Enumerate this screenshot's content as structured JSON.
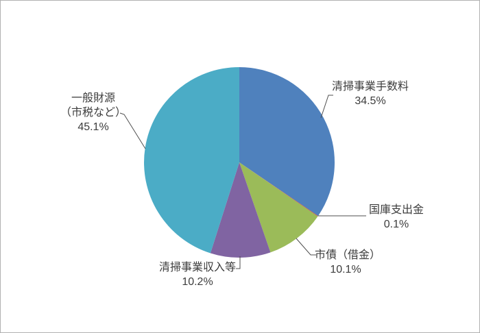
{
  "chart_data": {
    "type": "pie",
    "title": "",
    "direction": "clockwise",
    "start_angle_deg": 0,
    "center": [
      348,
      236
    ],
    "radius": 139,
    "slices": [
      {
        "label": "清掃事業手数料",
        "value": 34.5,
        "pct_label": "34.5%",
        "color": "#4F81BD"
      },
      {
        "label": "国庫支出金",
        "value": 0.1,
        "pct_label": "0.1%",
        "color": "#C0504D"
      },
      {
        "label": "市債（借金）",
        "value": 10.1,
        "pct_label": "10.1%",
        "color": "#9BBB59"
      },
      {
        "label": "清掃事業収入等",
        "value": 10.2,
        "pct_label": "10.2%",
        "color": "#8064A2"
      },
      {
        "label": "一般財源（市税など）",
        "value": 45.1,
        "pct_label": "45.1%",
        "color": "#4BACC6",
        "label_lines": [
          "一般財源",
          "（市税など）"
        ]
      }
    ],
    "legend": "none",
    "leader_line_color": "#4d4d4d",
    "label_text_color": "#3c3c3c",
    "background_color": "#ffffff"
  }
}
